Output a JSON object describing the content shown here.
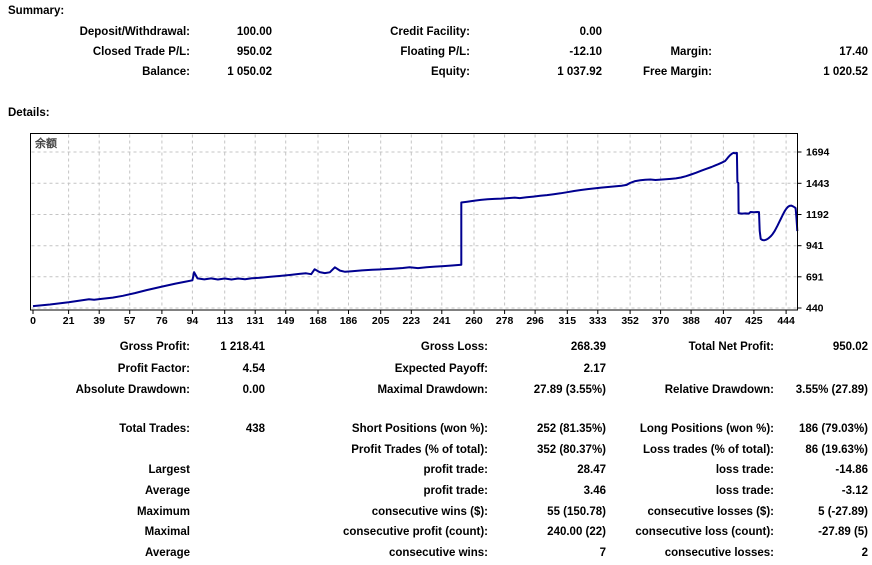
{
  "headings": {
    "summary": "Summary:",
    "details": "Details:"
  },
  "summary": {
    "rows": [
      {
        "l1": "Deposit/Withdrawal:",
        "v1": "100.00",
        "l2": "Credit Facility:",
        "v2": "0.00",
        "l3": "",
        "v3": ""
      },
      {
        "l1": "Closed Trade P/L:",
        "v1": "950.02",
        "l2": "Floating P/L:",
        "v2": "-12.10",
        "l3": "Margin:",
        "v3": "17.40"
      },
      {
        "l1": "Balance:",
        "v1": "1 050.02",
        "l2": "Equity:",
        "v2": "1 037.92",
        "l3": "Free Margin:",
        "v3": "1 020.52"
      }
    ]
  },
  "details": {
    "rows": [
      {
        "l1": "Gross Profit:",
        "v1": "1 218.41",
        "l2": "Gross Loss:",
        "v2": "268.39",
        "l3": "Total Net Profit:",
        "v3": "950.02"
      },
      {
        "l1": "Profit Factor:",
        "v1": "4.54",
        "l2": "Expected Payoff:",
        "v2": "2.17",
        "l3": "",
        "v3": ""
      },
      {
        "l1": "Absolute Drawdown:",
        "v1": "0.00",
        "l2": "Maximal Drawdown:",
        "v2": "27.89 (3.55%)",
        "l3": "Relative Drawdown:",
        "v3": "3.55% (27.89)"
      },
      {
        "l1": "Total Trades:",
        "v1": "438",
        "l2": "Short Positions (won %):",
        "v2": "252 (81.35%)",
        "l3": "Long Positions (won %):",
        "v3": "186 (79.03%)"
      },
      {
        "l1": "",
        "v1": "",
        "l2": "Profit Trades (% of total):",
        "v2": "352 (80.37%)",
        "l3": "Loss trades (% of total):",
        "v3": "86 (19.63%)"
      },
      {
        "l1": "Largest",
        "v1": "",
        "l2": "profit trade:",
        "v2": "28.47",
        "l3": "loss trade:",
        "v3": "-14.86"
      },
      {
        "l1": "Average",
        "v1": "",
        "l2": "profit trade:",
        "v2": "3.46",
        "l3": "loss trade:",
        "v3": "-3.12"
      },
      {
        "l1": "Maximum",
        "v1": "",
        "l2": "consecutive wins ($):",
        "v2": "55 (150.78)",
        "l3": "consecutive losses ($):",
        "v3": "5 (-27.89)"
      },
      {
        "l1": "Maximal",
        "v1": "",
        "l2": "consecutive profit (count):",
        "v2": "240.00 (22)",
        "l3": "consecutive loss (count):",
        "v3": "-27.89 (5)"
      },
      {
        "l1": "Average",
        "v1": "",
        "l2": "consecutive wins:",
        "v2": "7",
        "l3": "consecutive losses:",
        "v3": "2"
      }
    ]
  },
  "chart_data": {
    "type": "line",
    "title": "余额",
    "xlabel": "",
    "ylabel": "",
    "x_ticks": [
      0,
      21,
      39,
      57,
      76,
      94,
      113,
      131,
      149,
      168,
      186,
      205,
      223,
      241,
      260,
      278,
      296,
      315,
      333,
      352,
      370,
      388,
      407,
      425,
      444
    ],
    "y_ticks": [
      440,
      691,
      941,
      1192,
      1443,
      1694
    ],
    "xlim": [
      0,
      451
    ],
    "ylim": [
      424,
      1847
    ],
    "grid": true,
    "legend_position": "top-left",
    "line_color": "#000090",
    "grid_color": "#c4c4c4",
    "points": [
      [
        0,
        455
      ],
      [
        10,
        468
      ],
      [
        21,
        487
      ],
      [
        29,
        503
      ],
      [
        33,
        511
      ],
      [
        36,
        507
      ],
      [
        41,
        514
      ],
      [
        47,
        524
      ],
      [
        53,
        538
      ],
      [
        60,
        560
      ],
      [
        67,
        584
      ],
      [
        76,
        612
      ],
      [
        84,
        636
      ],
      [
        90,
        652
      ],
      [
        94,
        663
      ],
      [
        95,
        728
      ],
      [
        97,
        678
      ],
      [
        101,
        670
      ],
      [
        105,
        678
      ],
      [
        109,
        669
      ],
      [
        113,
        677
      ],
      [
        117,
        669
      ],
      [
        121,
        677
      ],
      [
        125,
        671
      ],
      [
        129,
        679
      ],
      [
        134,
        684
      ],
      [
        140,
        691
      ],
      [
        146,
        698
      ],
      [
        152,
        706
      ],
      [
        157,
        714
      ],
      [
        161,
        719
      ],
      [
        164,
        712
      ],
      [
        166,
        751
      ],
      [
        169,
        729
      ],
      [
        172,
        721
      ],
      [
        175,
        727
      ],
      [
        178,
        767
      ],
      [
        181,
        741
      ],
      [
        184,
        731
      ],
      [
        188,
        736
      ],
      [
        194,
        742
      ],
      [
        200,
        747
      ],
      [
        206,
        751
      ],
      [
        212,
        756
      ],
      [
        218,
        762
      ],
      [
        222,
        767
      ],
      [
        227,
        761
      ],
      [
        232,
        768
      ],
      [
        237,
        773
      ],
      [
        242,
        777
      ],
      [
        247,
        782
      ],
      [
        252.5,
        787
      ],
      [
        252.5,
        1288
      ],
      [
        256,
        1295
      ],
      [
        260,
        1303
      ],
      [
        264,
        1309
      ],
      [
        268,
        1314
      ],
      [
        272,
        1317
      ],
      [
        276,
        1320
      ],
      [
        280,
        1324
      ],
      [
        284,
        1328
      ],
      [
        287,
        1324
      ],
      [
        291,
        1330
      ],
      [
        295,
        1336
      ],
      [
        299,
        1342
      ],
      [
        303,
        1348
      ],
      [
        307,
        1355
      ],
      [
        311,
        1362
      ],
      [
        315,
        1371
      ],
      [
        319,
        1381
      ],
      [
        323,
        1389
      ],
      [
        327,
        1396
      ],
      [
        331,
        1402
      ],
      [
        335,
        1408
      ],
      [
        339,
        1413
      ],
      [
        343,
        1418
      ],
      [
        347,
        1423
      ],
      [
        350,
        1430
      ],
      [
        352,
        1446
      ],
      [
        355,
        1460
      ],
      [
        358,
        1467
      ],
      [
        361,
        1471
      ],
      [
        364,
        1473
      ],
      [
        367,
        1469
      ],
      [
        370,
        1472
      ],
      [
        373,
        1475
      ],
      [
        376,
        1478
      ],
      [
        379,
        1482
      ],
      [
        382,
        1489
      ],
      [
        385,
        1500
      ],
      [
        388,
        1513
      ],
      [
        391,
        1528
      ],
      [
        394,
        1544
      ],
      [
        397,
        1559
      ],
      [
        400,
        1574
      ],
      [
        402,
        1585
      ],
      [
        404,
        1596
      ],
      [
        406,
        1608
      ],
      [
        408,
        1622
      ],
      [
        409,
        1638
      ],
      [
        410,
        1655
      ],
      [
        411,
        1669
      ],
      [
        412,
        1680
      ],
      [
        413,
        1687
      ],
      [
        414,
        1684
      ],
      [
        415,
        1687
      ],
      [
        415.3,
        1452
      ],
      [
        415.8,
        1446
      ],
      [
        416,
        1202
      ],
      [
        418,
        1199
      ],
      [
        420,
        1201
      ],
      [
        422,
        1199
      ],
      [
        423,
        1212
      ],
      [
        425,
        1210
      ],
      [
        427,
        1212
      ],
      [
        428,
        1211
      ],
      [
        428.4,
        1060
      ],
      [
        429,
        996
      ],
      [
        430,
        987
      ],
      [
        431,
        984
      ],
      [
        432,
        988
      ],
      [
        433,
        995
      ],
      [
        434,
        1005
      ],
      [
        435,
        1018
      ],
      [
        436,
        1034
      ],
      [
        437,
        1054
      ],
      [
        438,
        1078
      ],
      [
        439,
        1104
      ],
      [
        440,
        1132
      ],
      [
        441,
        1160
      ],
      [
        442,
        1188
      ],
      [
        443,
        1214
      ],
      [
        444,
        1236
      ],
      [
        445,
        1252
      ],
      [
        446,
        1261
      ],
      [
        447,
        1263
      ],
      [
        448,
        1258
      ],
      [
        449,
        1250
      ],
      [
        449.6,
        1243
      ],
      [
        450,
        1180
      ],
      [
        450.4,
        1100
      ],
      [
        450.6,
        1058
      ]
    ]
  }
}
